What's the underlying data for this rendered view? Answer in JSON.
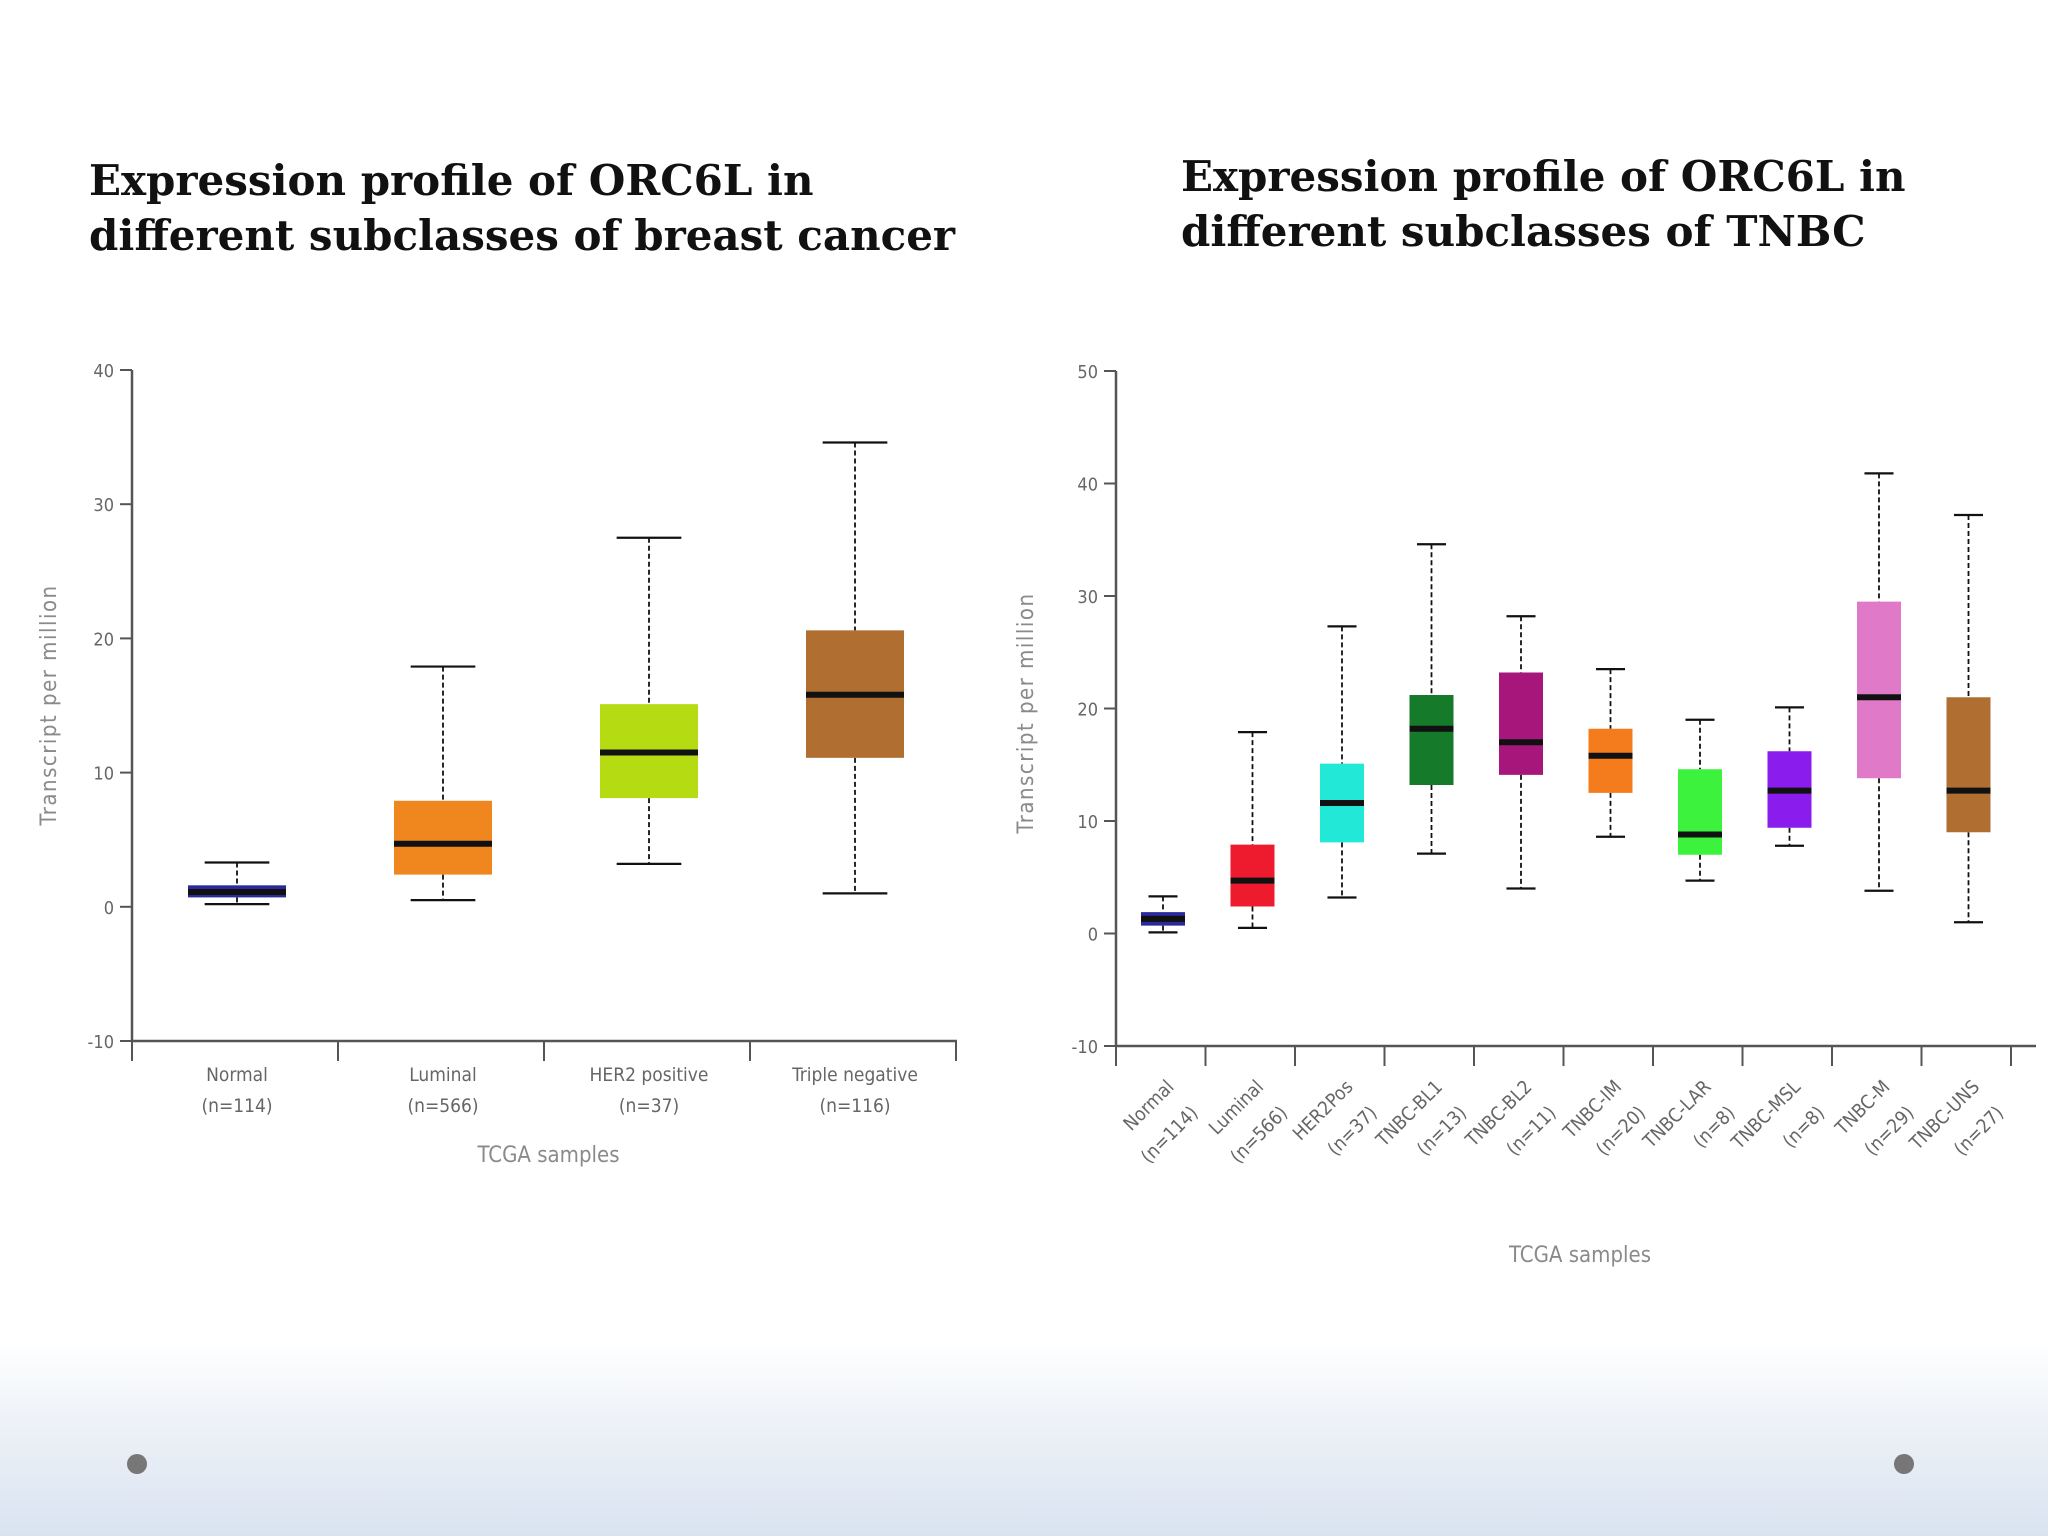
{
  "slide": {
    "left_title": [
      "Expression profile of ORC6L in",
      "different subclasses of breast cancer"
    ],
    "right_title": [
      "Expression profile of ORC6L in",
      "different subclasses of TNBC"
    ]
  },
  "chart_data": [
    {
      "type": "box",
      "xlabel": "TCGA samples",
      "ylabel": "Transcript per million",
      "ylim": [
        -10,
        40
      ],
      "yticks": [
        -10,
        0,
        10,
        20,
        30,
        40
      ],
      "grid": false,
      "legend": "none",
      "tick_rotation": 0,
      "categories": [
        {
          "label": "Normal",
          "n_label": "(n=114)",
          "color": "#2a2a9a",
          "min": 0.2,
          "q1": 0.7,
          "median": 1.1,
          "q3": 1.6,
          "max": 3.3
        },
        {
          "label": "Luminal",
          "n_label": "(n=566)",
          "color": "#f0871e",
          "min": 0.5,
          "q1": 2.4,
          "median": 4.7,
          "q3": 7.9,
          "max": 17.9
        },
        {
          "label": "HER2 positive",
          "n_label": "(n=37)",
          "color": "#b5dc12",
          "min": 3.2,
          "q1": 8.1,
          "median": 11.5,
          "q3": 15.1,
          "max": 27.5
        },
        {
          "label": "Triple negative",
          "n_label": "(n=116)",
          "color": "#b06e31",
          "min": 1.0,
          "q1": 11.1,
          "median": 15.8,
          "q3": 20.6,
          "max": 34.6
        }
      ]
    },
    {
      "type": "box",
      "xlabel": "TCGA samples",
      "ylabel": "Transcript per million",
      "ylim": [
        -10,
        50
      ],
      "yticks": [
        -10,
        0,
        10,
        20,
        30,
        40,
        50
      ],
      "grid": false,
      "legend": "none",
      "tick_rotation": -45,
      "categories": [
        {
          "label": "Normal",
          "n_label": "(n=114)",
          "color": "#2a2a9a",
          "min": 0.1,
          "q1": 0.7,
          "median": 1.3,
          "q3": 1.9,
          "max": 3.3
        },
        {
          "label": "Luminal",
          "n_label": "(n=566)",
          "color": "#ee1a2e",
          "min": 0.5,
          "q1": 2.4,
          "median": 4.7,
          "q3": 7.9,
          "max": 17.9
        },
        {
          "label": "HER2Pos",
          "n_label": "(n=37)",
          "color": "#22e8d8",
          "min": 3.2,
          "q1": 8.1,
          "median": 11.6,
          "q3": 15.1,
          "max": 27.3
        },
        {
          "label": "TNBC-BL1",
          "n_label": "(n=13)",
          "color": "#157a2a",
          "min": 7.1,
          "q1": 13.2,
          "median": 18.2,
          "q3": 21.2,
          "max": 34.6
        },
        {
          "label": "TNBC-BL2",
          "n_label": "(n=11)",
          "color": "#a7177b",
          "min": 4.0,
          "q1": 14.1,
          "median": 17.0,
          "q3": 23.2,
          "max": 28.2
        },
        {
          "label": "TNBC-IM",
          "n_label": "(n=20)",
          "color": "#f47c1c",
          "min": 8.6,
          "q1": 12.5,
          "median": 15.8,
          "q3": 18.2,
          "max": 23.5
        },
        {
          "label": "TNBC-LAR",
          "n_label": "(n=8)",
          "color": "#3cf23c",
          "min": 4.7,
          "q1": 7.0,
          "median": 8.8,
          "q3": 14.6,
          "max": 19.0
        },
        {
          "label": "TNBC-MSL",
          "n_label": "(n=8)",
          "color": "#8a1cee",
          "min": 7.8,
          "q1": 9.4,
          "median": 12.7,
          "q3": 16.2,
          "max": 20.1
        },
        {
          "label": "TNBC-M",
          "n_label": "(n=29)",
          "color": "#e07ac8",
          "min": 3.8,
          "q1": 13.8,
          "median": 21.0,
          "q3": 29.5,
          "max": 40.9
        },
        {
          "label": "TNBC-UNS",
          "n_label": "(n=27)",
          "color": "#b06e31",
          "min": 1.0,
          "q1": 9.0,
          "median": 12.7,
          "q3": 21.0,
          "max": 37.2
        }
      ]
    }
  ]
}
